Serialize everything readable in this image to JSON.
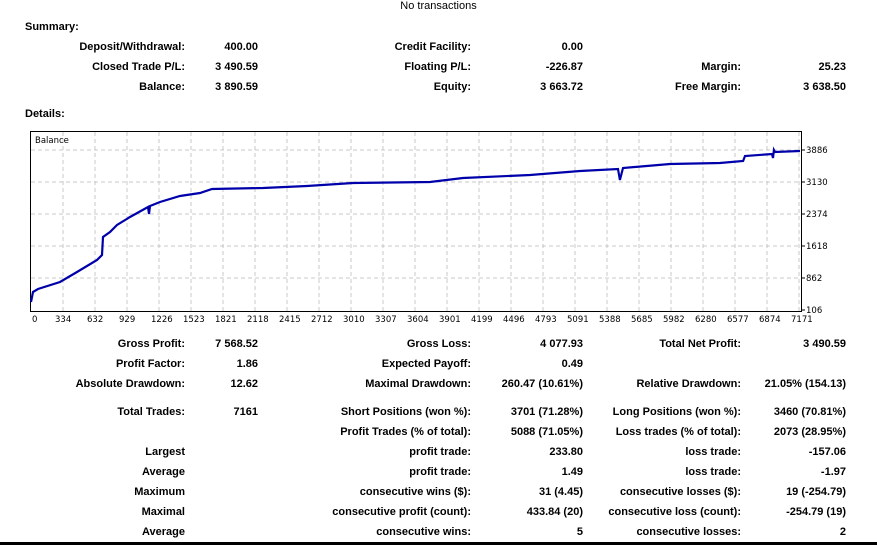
{
  "header_note": "No transactions",
  "summary": {
    "title": "Summary:",
    "rows": [
      [
        [
          "Deposit/Withdrawal:",
          "400.00"
        ],
        [
          "Credit Facility:",
          "0.00"
        ],
        [
          "",
          ""
        ]
      ],
      [
        [
          "Closed Trade P/L:",
          "3 490.59"
        ],
        [
          "Floating P/L:",
          "-226.87"
        ],
        [
          "Margin:",
          "25.23"
        ]
      ],
      [
        [
          "Balance:",
          "3 890.59"
        ],
        [
          "Equity:",
          "3 663.72"
        ],
        [
          "Free Margin:",
          "3 638.50"
        ]
      ]
    ]
  },
  "details": {
    "title": "Details:",
    "rows": [
      [
        [
          "Gross Profit:",
          "7 568.52"
        ],
        [
          "Gross Loss:",
          "4 077.93"
        ],
        [
          "Total Net Profit:",
          "3 490.59"
        ]
      ],
      [
        [
          "Profit Factor:",
          "1.86"
        ],
        [
          "Expected Payoff:",
          "0.49"
        ],
        [
          "",
          ""
        ]
      ],
      [
        [
          "Absolute Drawdown:",
          "12.62"
        ],
        [
          "Maximal Drawdown:",
          "260.47 (10.61%)"
        ],
        [
          "Relative Drawdown:",
          "21.05% (154.13)"
        ]
      ],
      [
        [
          "Total Trades:",
          "7161"
        ],
        [
          "Short Positions (won %):",
          "3701 (71.28%)"
        ],
        [
          "Long Positions (won %):",
          "3460 (70.81%)"
        ]
      ],
      [
        [
          "",
          ""
        ],
        [
          "Profit Trades (% of total):",
          "5088 (71.05%)"
        ],
        [
          "Loss trades (% of total):",
          "2073 (28.95%)"
        ]
      ],
      [
        [
          "Largest",
          ""
        ],
        [
          "profit trade:",
          "233.80"
        ],
        [
          "loss trade:",
          "-157.06"
        ]
      ],
      [
        [
          "Average",
          ""
        ],
        [
          "profit trade:",
          "1.49"
        ],
        [
          "loss trade:",
          "-1.97"
        ]
      ],
      [
        [
          "Maximum",
          ""
        ],
        [
          "consecutive wins ($):",
          "31 (4.45)"
        ],
        [
          "consecutive losses ($):",
          "19 (-254.79)"
        ]
      ],
      [
        [
          "Maximal",
          ""
        ],
        [
          "consecutive profit (count):",
          "433.84 (20)"
        ],
        [
          "consecutive loss (count):",
          "-254.79 (19)"
        ]
      ],
      [
        [
          "Average",
          ""
        ],
        [
          "consecutive wins:",
          "5"
        ],
        [
          "consecutive losses:",
          "2"
        ]
      ]
    ]
  },
  "chart_data": {
    "type": "line",
    "title": "Balance",
    "xlabel": "",
    "ylabel": "",
    "line_color": "#0000AA",
    "grid": true,
    "xlim": [
      0,
      7171
    ],
    "ylim": [
      106,
      3886
    ],
    "x_ticks": [
      "0",
      "334",
      "632",
      "929",
      "1226",
      "1523",
      "1821",
      "2118",
      "2415",
      "2712",
      "3010",
      "3307",
      "3604",
      "3901",
      "4199",
      "4496",
      "4793",
      "5091",
      "5388",
      "5685",
      "5982",
      "6280",
      "6577",
      "6874",
      "7171"
    ],
    "y_ticks": [
      "3886",
      "3130",
      "2374",
      "1618",
      "862",
      "106"
    ],
    "x": [
      0,
      19,
      65,
      270,
      429,
      615,
      662,
      671,
      737,
      802,
      923,
      1091,
      1100,
      1110,
      1203,
      1389,
      1576,
      1688,
      2163,
      2574,
      3003,
      3721,
      4028,
      4653,
      5120,
      5474,
      5492,
      5520,
      5959,
      6425,
      6640,
      6658,
      6910,
      6919,
      6928,
      6938,
      7171
    ],
    "y": [
      295,
      531,
      602,
      767,
      1004,
      1287,
      1405,
      1831,
      1949,
      2114,
      2303,
      2539,
      2374,
      2563,
      2658,
      2799,
      2870,
      2965,
      2988,
      3036,
      3106,
      3130,
      3225,
      3295,
      3390,
      3437,
      3177,
      3460,
      3555,
      3579,
      3626,
      3744,
      3791,
      3697,
      3886,
      3839,
      3862
    ]
  }
}
